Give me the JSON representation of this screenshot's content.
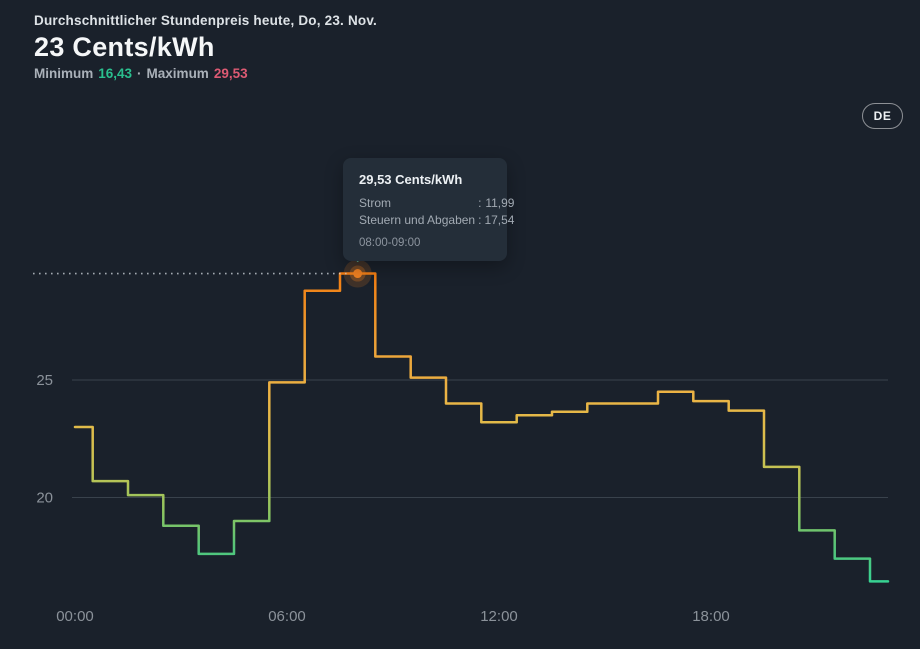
{
  "header": {
    "subtitle": "Durchschnittlicher Stundenpreis heute, Do, 23. Nov.",
    "title": "23 Cents/kWh",
    "minimum_label": "Minimum",
    "minimum_value": "16,43",
    "separator": "·",
    "maximum_label": "Maximum",
    "maximum_value": "29,53",
    "min_color": "#2abf8e",
    "max_color": "#dd5a73"
  },
  "language_button": {
    "label": "DE"
  },
  "tooltip": {
    "title": "29,53 Cents/kWh",
    "rows": [
      {
        "label": "Strom",
        "separator": ":",
        "value": "11,99"
      },
      {
        "label": "Steuern und Abgaben",
        "separator": ":",
        "value": "17,54"
      }
    ],
    "time_range": "08:00-09:00"
  },
  "chart_data": {
    "type": "line",
    "subtype": "step-centered-hourly",
    "title": "Durchschnittlicher Stundenpreis heute, Do, 23. Nov.",
    "ylabel": "Cents/kWh",
    "average": 23,
    "minimum": 16.43,
    "maximum": 29.53,
    "x_hours": [
      0,
      1,
      2,
      3,
      4,
      5,
      6,
      7,
      8,
      9,
      10,
      11,
      12,
      13,
      14,
      15,
      16,
      17,
      18,
      19,
      20,
      21,
      22,
      23
    ],
    "values": [
      23.0,
      20.7,
      20.1,
      18.8,
      17.6,
      19.0,
      24.9,
      28.8,
      29.53,
      26.0,
      25.1,
      24.0,
      23.2,
      23.5,
      23.65,
      24.0,
      24.0,
      24.5,
      24.1,
      23.7,
      21.3,
      18.6,
      17.4,
      16.43
    ],
    "highlight": {
      "hour": 8,
      "value": 29.53,
      "time_range": "08:00-09:00"
    },
    "xticks": [
      {
        "hour": 0,
        "label": "00:00"
      },
      {
        "hour": 6,
        "label": "06:00"
      },
      {
        "hour": 12,
        "label": "12:00"
      },
      {
        "hour": 18,
        "label": "18:00"
      }
    ],
    "yticks": [
      {
        "value": 25,
        "label": "25"
      },
      {
        "value": 20,
        "label": "20"
      }
    ],
    "ylim": [
      16,
      30
    ],
    "grid": true,
    "colors": {
      "gridline": "#39424c",
      "tick_text": "#8b929a",
      "dot": "#f08122",
      "guide": "#dfe5ea",
      "connector": "#3bd4c4",
      "gradient_stops": [
        {
          "offset": "0%",
          "color": "#f5790f"
        },
        {
          "offset": "10%",
          "color": "#f08a1e"
        },
        {
          "offset": "25%",
          "color": "#eda238"
        },
        {
          "offset": "40%",
          "color": "#ecb445"
        },
        {
          "offset": "52%",
          "color": "#ddbd4b"
        },
        {
          "offset": "63%",
          "color": "#c2c354"
        },
        {
          "offset": "75%",
          "color": "#8fc55f"
        },
        {
          "offset": "86%",
          "color": "#57c478"
        },
        {
          "offset": "100%",
          "color": "#2ed69a"
        }
      ]
    }
  }
}
